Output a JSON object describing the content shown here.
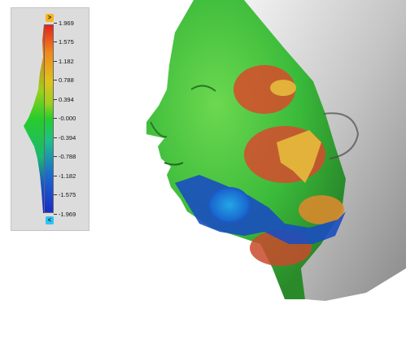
{
  "legend": {
    "max_arrow": ">",
    "min_arrow": "<",
    "ticks": [
      "1.969",
      "1.575",
      "1.182",
      "0.788",
      "0.394",
      "-0.000",
      "-0.394",
      "-0.788",
      "-1.182",
      "-1.575",
      "-1.969"
    ],
    "range": [
      -1.969,
      1.969
    ],
    "colors": [
      "#e8221e",
      "#f08a1a",
      "#e0c21a",
      "#9ad01c",
      "#22d02a",
      "#1cc08a",
      "#1a6ad0",
      "#1a2cc8"
    ]
  },
  "scene": {
    "mesh_color": "#d9d9d9",
    "deviation_colors": {
      "positive_high": "#d94a2a",
      "positive_mid": "#e2b23a",
      "neutral": "#3ec43c",
      "negative_mid": "#1a5ac8",
      "negative_high": "#22a6e6"
    }
  }
}
